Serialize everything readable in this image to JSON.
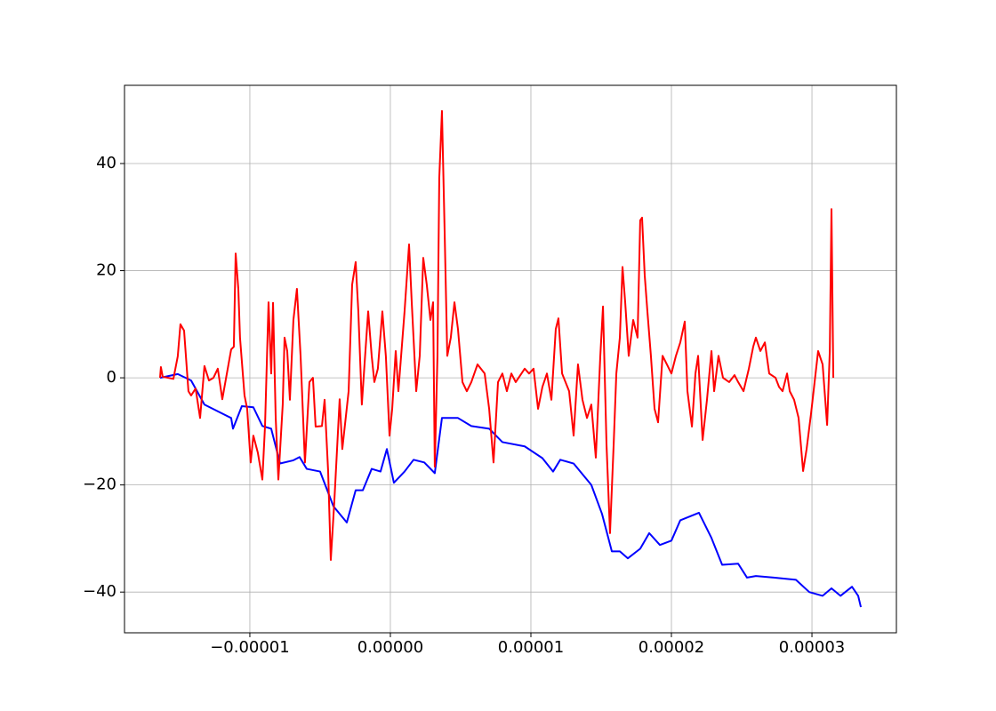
{
  "chart_data": {
    "type": "line",
    "xlim": [
      -1.892e-05,
      3.601e-05
    ],
    "ylim": [
      -47.6,
      54.6
    ],
    "xticks": [
      {
        "value": -1e-05,
        "label": "−0.00001"
      },
      {
        "value": 0,
        "label": "0.00000"
      },
      {
        "value": 1e-05,
        "label": "0.00001"
      },
      {
        "value": 2e-05,
        "label": "0.00002"
      },
      {
        "value": 3e-05,
        "label": "0.00003"
      }
    ],
    "yticks": [
      {
        "value": -40,
        "label": "−40"
      },
      {
        "value": -20,
        "label": "−20"
      },
      0,
      20,
      40
    ],
    "grid": true,
    "series": [
      {
        "color": "#0000ff",
        "x": [
          -1.639e-05,
          -1.513e-05,
          -1.418e-05,
          -1.323e-05,
          -1.133e-05,
          -1.12e-05,
          -1.057e-05,
          -9.75e-06,
          -9.11e-06,
          -8.48e-06,
          -7.85e-06,
          -6.9e-06,
          -6.46e-06,
          -5.95e-06,
          -5e-06,
          -4.05e-06,
          -3.1e-06,
          -2.47e-06,
          -1.96e-06,
          -1.33e-06,
          -7e-07,
          -2.5e-07,
          2.5e-07,
          1.01e-06,
          1.65e-06,
          2.41e-06,
          3.16e-06,
          3.67e-06,
          4.81e-06,
          5.76e-06,
          7.03e-06,
          7.97e-06,
          9.56e-06,
          1.082e-05,
          1.158e-05,
          1.209e-05,
          1.304e-05,
          1.43e-05,
          1.506e-05,
          1.576e-05,
          1.633e-05,
          1.69e-05,
          1.778e-05,
          1.842e-05,
          1.918e-05,
          2e-05,
          2.063e-05,
          2.196e-05,
          2.285e-05,
          2.361e-05,
          2.475e-05,
          2.538e-05,
          2.601e-05,
          2.728e-05,
          2.886e-05,
          2.981e-05,
          3.076e-05,
          3.139e-05,
          3.203e-05,
          3.285e-05,
          3.329e-05,
          3.348e-05
        ],
        "values": [
          0,
          0.7,
          -0.5,
          -5,
          -7.5,
          -9.5,
          -5.3,
          -5.5,
          -9,
          -9.5,
          -16,
          -15.4,
          -14.8,
          -17,
          -17.5,
          -24,
          -27,
          -21,
          -21,
          -17,
          -17.5,
          -13.3,
          -19.6,
          -17.5,
          -15.3,
          -15.8,
          -17.8,
          -7.5,
          -7.5,
          -9,
          -9.5,
          -12,
          -12.8,
          -15,
          -17.5,
          -15.3,
          -16,
          -20,
          -25.4,
          -32.4,
          -32.4,
          -33.7,
          -31.9,
          -29,
          -31.2,
          -30.4,
          -26.6,
          -25.2,
          -29.9,
          -34.9,
          -34.7,
          -37.3,
          -37,
          -37.3,
          -37.7,
          -40,
          -40.7,
          -39.3,
          -40.7,
          -39,
          -40.7,
          -42.8
        ]
      },
      {
        "color": "#ff0000",
        "x": [
          -1.639e-05,
          -1.633e-05,
          -1.62e-05,
          -1.544e-05,
          -1.513e-05,
          -1.494e-05,
          -1.468e-05,
          -1.437e-05,
          -1.418e-05,
          -1.386e-05,
          -1.354e-05,
          -1.323e-05,
          -1.291e-05,
          -1.259e-05,
          -1.228e-05,
          -1.196e-05,
          -1.152e-05,
          -1.133e-05,
          -1.114e-05,
          -1.101e-05,
          -1.082e-05,
          -1.07e-05,
          -1.038e-05,
          -1.019e-05,
          -9.94e-06,
          -9.75e-06,
          -9.43e-06,
          -9.11e-06,
          -8.92e-06,
          -8.67e-06,
          -8.48e-06,
          -8.35e-06,
          -8.16e-06,
          -7.97e-06,
          -7.66e-06,
          -7.53e-06,
          -7.34e-06,
          -7.15e-06,
          -6.9e-06,
          -6.65e-06,
          -6.39e-06,
          -6.08e-06,
          -5.76e-06,
          -5.51e-06,
          -5.32e-06,
          -4.87e-06,
          -4.68e-06,
          -4.43e-06,
          -4.24e-06,
          -3.99e-06,
          -3.61e-06,
          -3.42e-06,
          -2.97e-06,
          -2.72e-06,
          -2.47e-06,
          -2.28e-06,
          -2.03e-06,
          -1.84e-06,
          -1.58e-06,
          -1.33e-06,
          -1.14e-06,
          -8.9e-07,
          -5.7e-07,
          -3.2e-07,
          -6e-08,
          1.3e-07,
          3.8e-07,
          5.7e-07,
          1.01e-06,
          1.33e-06,
          1.52e-06,
          1.84e-06,
          2.09e-06,
          2.34e-06,
          2.59e-06,
          2.85e-06,
          3.04e-06,
          3.16e-06,
          3.35e-06,
          3.48e-06,
          3.67e-06,
          3.86e-06,
          4.05e-06,
          4.3e-06,
          4.56e-06,
          4.81e-06,
          5.13e-06,
          5.44e-06,
          5.76e-06,
          6.2e-06,
          6.71e-06,
          7.03e-06,
          7.34e-06,
          7.66e-06,
          7.97e-06,
          8.29e-06,
          8.61e-06,
          8.92e-06,
          9.56e-06,
          9.87e-06,
          1.019e-05,
          1.051e-05,
          1.082e-05,
          1.114e-05,
          1.146e-05,
          1.177e-05,
          1.196e-05,
          1.222e-05,
          1.272e-05,
          1.304e-05,
          1.335e-05,
          1.367e-05,
          1.399e-05,
          1.43e-05,
          1.462e-05,
          1.494e-05,
          1.513e-05,
          1.538e-05,
          1.563e-05,
          1.589e-05,
          1.608e-05,
          1.633e-05,
          1.652e-05,
          1.671e-05,
          1.696e-05,
          1.728e-05,
          1.759e-05,
          1.778e-05,
          1.791e-05,
          1.81e-05,
          1.829e-05,
          1.854e-05,
          1.88e-05,
          1.905e-05,
          1.937e-05,
          1.968e-05,
          2e-05,
          2.032e-05,
          2.063e-05,
          2.095e-05,
          2.114e-05,
          2.146e-05,
          2.171e-05,
          2.19e-05,
          2.222e-05,
          2.253e-05,
          2.285e-05,
          2.304e-05,
          2.335e-05,
          2.367e-05,
          2.411e-05,
          2.449e-05,
          2.475e-05,
          2.513e-05,
          2.551e-05,
          2.582e-05,
          2.601e-05,
          2.633e-05,
          2.665e-05,
          2.696e-05,
          2.741e-05,
          2.766e-05,
          2.791e-05,
          2.823e-05,
          2.842e-05,
          2.873e-05,
          2.905e-05,
          2.937e-05,
          2.962e-05,
          2.994e-05,
          3.019e-05,
          3.044e-05,
          3.076e-05,
          3.108e-05,
          3.127e-05,
          3.139e-05,
          3.152e-05
        ],
        "values": [
          0,
          2,
          0.2,
          -0.2,
          4,
          10,
          8.8,
          -2.5,
          -3.3,
          -2,
          -7.5,
          2.2,
          -0.5,
          0,
          1.7,
          -4,
          2.5,
          5.3,
          5.8,
          23.2,
          16.6,
          7.5,
          -3.3,
          -5.8,
          -15.8,
          -10.8,
          -14,
          -19,
          -9,
          14.1,
          0.8,
          14,
          -7.5,
          -19,
          -5,
          7.5,
          5,
          -4.1,
          10.8,
          16.6,
          4.1,
          -15.8,
          -0.8,
          0,
          -9.1,
          -9,
          -4.1,
          -17.4,
          -34,
          -23.2,
          -4,
          -13.3,
          -2.5,
          17.4,
          21.6,
          12.4,
          -5,
          2.5,
          12.4,
          4.1,
          -0.8,
          1.7,
          12.4,
          4,
          -10.8,
          -5.8,
          5,
          -2.5,
          12.4,
          24.9,
          14.1,
          -2.5,
          4.1,
          22.4,
          17.4,
          10.8,
          14.1,
          -16.6,
          4,
          37.3,
          49.8,
          27.4,
          4.1,
          7.5,
          14.1,
          9.1,
          -0.8,
          -2.5,
          -0.8,
          2.5,
          0.8,
          -5.8,
          -15.8,
          -0.8,
          0.8,
          -2.5,
          0.8,
          -0.8,
          1.7,
          0.8,
          1.7,
          -5.8,
          -1.7,
          0.8,
          -4.1,
          9.1,
          11.1,
          0.8,
          -2.5,
          -10.8,
          2.5,
          -4.1,
          -7.5,
          -5,
          -14.9,
          4.1,
          13.3,
          -12.4,
          -29,
          -12.4,
          0.8,
          7.5,
          20.7,
          14.1,
          4.1,
          10.8,
          7.5,
          29.4,
          29.9,
          19.1,
          12.4,
          4.1,
          -5.8,
          -8.3,
          4.1,
          2.5,
          0.8,
          4.1,
          6.6,
          10.5,
          -2.5,
          -9.1,
          0.8,
          4.1,
          -11.6,
          -4.1,
          5,
          -2.5,
          4.1,
          0,
          -0.8,
          0.5,
          -0.8,
          -2.5,
          1.7,
          5.8,
          7.5,
          5,
          6.6,
          0.8,
          0,
          -1.7,
          -2.5,
          0.8,
          -2.5,
          -4.1,
          -7.5,
          -17.4,
          -13.3,
          -6.6,
          -0.8,
          5,
          2.5,
          -8.8,
          5,
          31.5,
          0
        ]
      }
    ]
  }
}
